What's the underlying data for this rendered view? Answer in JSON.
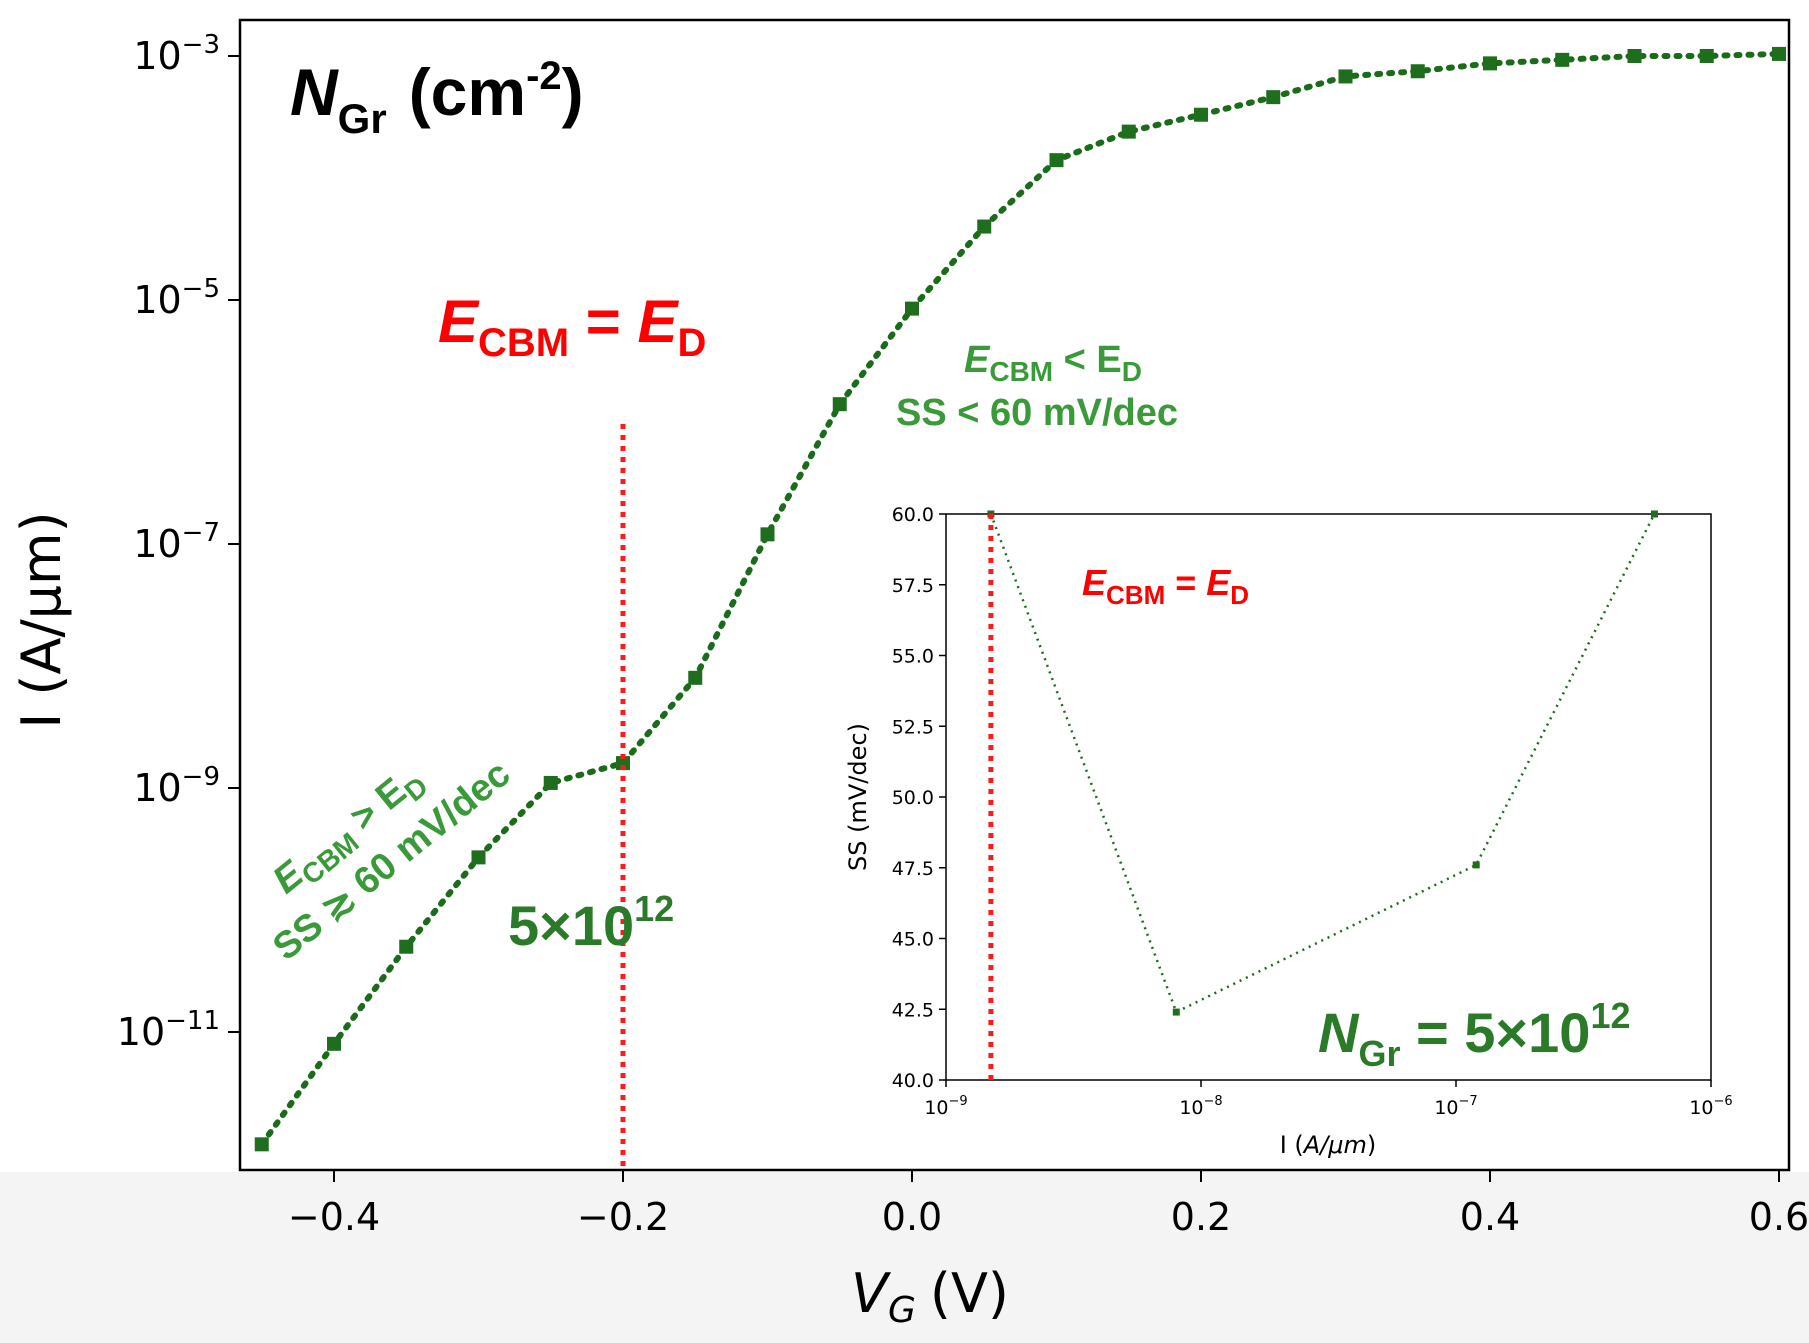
{
  "main_chart": {
    "title_symbol": "N",
    "title_sub": "Gr",
    "title_unit_open": "(cm",
    "title_unit_exp": "-2",
    "title_unit_close": ")",
    "xlabel_main": "V",
    "xlabel_sub": "G",
    "xlabel_unit": "(V)",
    "ylabel": "I (A/μm)",
    "x_tick_labels": [
      "−0.4",
      "−0.2",
      "0.0",
      "0.2",
      "0.4",
      "0.6"
    ],
    "y_tick_mantissa": "10",
    "y_tick_exponents": [
      "−3",
      "−5",
      "−7",
      "−9",
      "−11"
    ],
    "vline_label": {
      "e1": "E",
      "s1": "CBM",
      "eq": " = ",
      "e2": "E",
      "s2": "D"
    },
    "density_label_base": "5×10",
    "density_label_exp": "12",
    "region_right": {
      "line1_e": "E",
      "line1_s1": "CBM",
      "line1_op": " < E",
      "line1_s2": "D",
      "line2": "SS < 60 mV/dec"
    },
    "region_left": {
      "line1_e": "E",
      "line1_s1": "CBM",
      "line1_op": " > E",
      "line1_s2": "D",
      "line2": "SS ≳ 60 mV/dec"
    }
  },
  "inset_chart": {
    "xlabel_main": "I (",
    "xlabel_italic": "A/μm",
    "xlabel_close": ")",
    "ylabel": "SS (mV/dec)",
    "y_tick_labels": [
      "40.0",
      "42.5",
      "45.0",
      "47.5",
      "50.0",
      "52.5",
      "55.0",
      "57.5",
      "60.0"
    ],
    "x_tick_mantissa": "10",
    "x_tick_exponents": [
      "−9",
      "−8",
      "−7",
      "−6"
    ],
    "vline_label": {
      "e1": "E",
      "s1": "CBM",
      "eq": " = ",
      "e2": "E",
      "s2": "D"
    },
    "ngr_label": {
      "sym": "N",
      "sub": "Gr",
      "eq": " = 5×10",
      "exp": "12"
    }
  },
  "colors": {
    "series": "#1a6b1a",
    "marker": "#1e6e1e",
    "vline": "#ff1a1a",
    "red_text": "#ff0000",
    "green_text": "#3a9a3a",
    "dark_green_text": "#2a7a2a"
  },
  "chart_data": [
    {
      "type": "line",
      "title": "N_Gr (cm^-2)",
      "xlabel": "V_G (V)",
      "ylabel": "I (A/μm)",
      "yscale": "log",
      "xlim": [
        -0.45,
        0.61
      ],
      "ylim": [
        1e-12,
        0.0014
      ],
      "x_ticks": [
        -0.4,
        -0.2,
        0.0,
        0.2,
        0.4,
        0.6
      ],
      "y_ticks": [
        0.001,
        1e-05,
        1e-07,
        1e-09,
        1e-11
      ],
      "grid": false,
      "series": [
        {
          "name": "5×10^12",
          "style": "dotted line with square markers",
          "x": [
            -0.45,
            -0.4,
            -0.35,
            -0.3,
            -0.25,
            -0.2,
            -0.15,
            -0.1,
            -0.05,
            0.0,
            0.05,
            0.1,
            0.15,
            0.2,
            0.25,
            0.3,
            0.35,
            0.4,
            0.45,
            0.5,
            0.55,
            0.6
          ],
          "y": [
            1.2e-12,
            8e-12,
            5e-11,
            2.7e-10,
            1.1e-09,
            1.6e-09,
            8e-09,
            1.2e-07,
            1.4e-06,
            8.5e-06,
            4e-05,
            0.00014,
            0.00024,
            0.00033,
            0.00046,
            0.00068,
            0.00075,
            0.00087,
            0.00093,
            0.001,
            0.001,
            0.00104
          ]
        }
      ],
      "vline": {
        "x": -0.2,
        "label": "E_CBM = E_D"
      }
    },
    {
      "type": "line",
      "title": "",
      "xlabel": "I (A/μm)",
      "ylabel": "SS (mV/dec)",
      "xscale": "log",
      "xlim": [
        1e-09,
        1e-06
      ],
      "ylim": [
        40.0,
        60.0
      ],
      "grid": false,
      "series": [
        {
          "name": "N_Gr = 5×10^12",
          "style": "dotted line with small square markers",
          "x": [
            1.5e-09,
            8e-09,
            1.2e-07,
            6e-07
          ],
          "y": [
            60.0,
            42.4,
            47.6,
            60.0
          ]
        }
      ],
      "vline": {
        "x": 1.5e-09,
        "label": "E_CBM = E_D"
      }
    }
  ]
}
